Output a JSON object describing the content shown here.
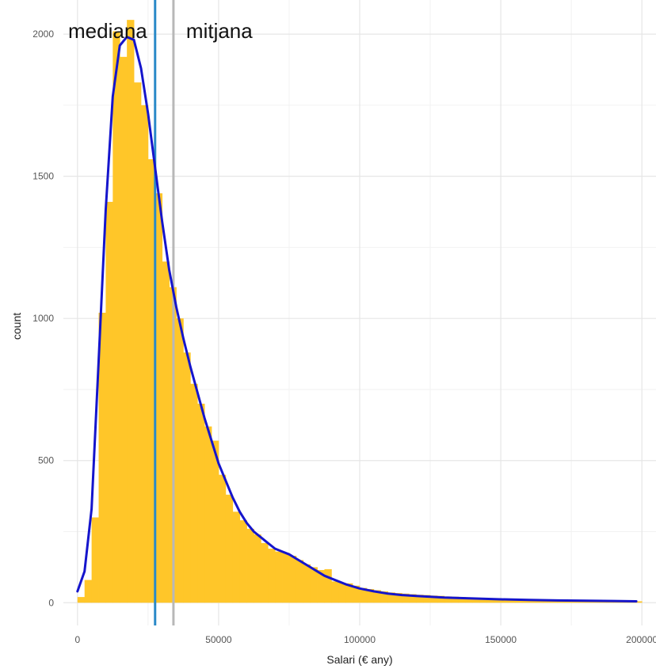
{
  "chart_data": {
    "type": "bar",
    "title": "",
    "xlabel": "Salari (€ any)",
    "ylabel": "count",
    "xlim": [
      -5000,
      205000
    ],
    "ylim": [
      -80,
      2120
    ],
    "x_ticks": [
      0,
      50000,
      100000,
      150000,
      200000
    ],
    "y_ticks": [
      0,
      500,
      1000,
      1500,
      2000
    ],
    "x_tick_labels": [
      "0",
      "50000",
      "100000",
      "150000",
      "200000"
    ],
    "y_tick_labels": [
      "0",
      "500",
      "1000",
      "1500",
      "2000"
    ],
    "grid": true,
    "bin_width": 2500,
    "histogram": {
      "name": "",
      "color": "#FFC629",
      "bin_starts": [
        0,
        2500,
        5000,
        7500,
        10000,
        12500,
        15000,
        17500,
        20000,
        22500,
        25000,
        27500,
        30000,
        32500,
        35000,
        37500,
        40000,
        42500,
        45000,
        47500,
        50000,
        52500,
        55000,
        57500,
        60000,
        62500,
        65000,
        67500,
        70000,
        72500,
        75000,
        77500,
        80000,
        82500,
        85000,
        87500,
        90000,
        92500,
        95000,
        97500,
        100000,
        102500,
        105000,
        107500,
        110000,
        112500,
        115000,
        117500,
        120000,
        122500,
        125000,
        127500,
        130000,
        132500,
        135000,
        137500,
        140000,
        142500,
        145000,
        147500,
        150000,
        152500,
        155000,
        157500,
        160000,
        162500,
        165000,
        167500,
        170000,
        172500,
        175000,
        177500,
        180000,
        182500,
        185000,
        187500,
        190000,
        192500,
        195000,
        197500
      ],
      "counts": [
        20,
        80,
        300,
        1020,
        1410,
        2010,
        1920,
        2050,
        1830,
        1750,
        1560,
        1440,
        1200,
        1110,
        1000,
        880,
        770,
        700,
        620,
        570,
        450,
        380,
        320,
        290,
        260,
        240,
        210,
        190,
        180,
        175,
        165,
        150,
        135,
        125,
        115,
        118,
        75,
        70,
        68,
        60,
        52,
        48,
        44,
        40,
        36,
        34,
        32,
        30,
        28,
        27,
        25,
        24,
        22,
        21,
        20,
        18,
        17,
        16,
        15,
        14,
        13,
        12,
        12,
        11,
        10,
        10,
        9,
        9,
        8,
        8,
        7,
        7,
        7,
        6,
        6,
        6,
        5,
        5,
        5,
        5
      ]
    },
    "density": {
      "name": "",
      "color": "#1515CC",
      "x": [
        0,
        2500,
        5000,
        7500,
        10000,
        12500,
        15000,
        17500,
        20000,
        22500,
        25000,
        27500,
        30000,
        32500,
        35000,
        37500,
        40000,
        42500,
        45000,
        47500,
        50000,
        52500,
        55000,
        57500,
        60000,
        62500,
        65000,
        67500,
        70000,
        72500,
        75000,
        77500,
        80000,
        82500,
        85000,
        87500,
        90000,
        95000,
        100000,
        105000,
        110000,
        115000,
        120000,
        125000,
        130000,
        140000,
        150000,
        160000,
        170000,
        180000,
        190000,
        198000
      ],
      "y": [
        40,
        110,
        330,
        850,
        1380,
        1780,
        1960,
        1990,
        1980,
        1880,
        1720,
        1530,
        1340,
        1170,
        1040,
        930,
        830,
        740,
        650,
        570,
        490,
        430,
        370,
        320,
        280,
        250,
        230,
        210,
        190,
        180,
        170,
        155,
        140,
        125,
        110,
        95,
        85,
        65,
        50,
        40,
        32,
        27,
        24,
        21,
        18,
        15,
        12,
        10,
        8,
        7,
        6,
        5
      ]
    },
    "vlines": [
      {
        "label": "mediana",
        "x": 27500,
        "color": "#2A8AC8"
      },
      {
        "label": "mitjana",
        "x": 34000,
        "color": "#B8B8B8"
      }
    ]
  }
}
